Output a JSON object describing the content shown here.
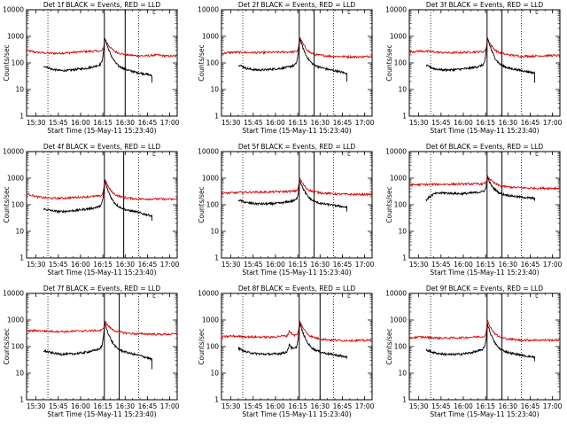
{
  "chart_data": [
    {
      "type": "line",
      "title": "Det 1f BLACK = Events, RED = LLD",
      "xlabel": "Start Time (15-May-11 15:23:40)",
      "ylabel": "Counts/sec",
      "x_ticks": [
        "15:30",
        "15:45",
        "16:00",
        "16:15",
        "16:30",
        "16:45",
        "17:00"
      ],
      "y_ticks": [
        "1",
        "10",
        "100",
        "1000",
        "10000"
      ],
      "yscale": "log",
      "ylim": [
        1,
        10000
      ],
      "xlim": [
        "15:23:40",
        "17:05:00"
      ],
      "legend_marker": "└",
      "vlines_solid": [
        "16:16",
        "16:30"
      ],
      "vlines_dotted": [
        "15:38",
        "16:39"
      ],
      "series": [
        {
          "name": "RED = LLD",
          "color": "#dd0000",
          "start": "15:23:40",
          "end": "17:05:00",
          "base": [
            290,
            250,
            235,
            230,
            240,
            255,
            270,
            280,
            260,
            230,
            200,
            185,
            185,
            200,
            180,
            180
          ],
          "peaks": [
            {
              "t": "16:16",
              "v": 900,
              "w": 2.5
            }
          ]
        },
        {
          "name": "BLACK = Events",
          "color": "#000000",
          "start": "15:35",
          "end": "16:48",
          "base": [
            78,
            58,
            52,
            52,
            58,
            62,
            72,
            88,
            105,
            70,
            55,
            45,
            40,
            33
          ],
          "peaks": [
            {
              "t": "16:16",
              "v": 1000,
              "w": 2
            }
          ],
          "tail": 18
        }
      ]
    },
    {
      "type": "line",
      "title": "Det 2f BLACK = Events, RED = LLD",
      "xlabel": "Start Time (15-May-11 15:23:40)",
      "ylabel": "Counts/sec",
      "x_ticks": [
        "15:30",
        "15:45",
        "16:00",
        "16:15",
        "16:30",
        "16:45",
        "17:00"
      ],
      "y_ticks": [
        "1",
        "10",
        "100",
        "1000",
        "10000"
      ],
      "yscale": "log",
      "ylim": [
        1,
        10000
      ],
      "xlim": [
        "15:23:40",
        "17:05:00"
      ],
      "legend_marker": "└",
      "vlines_solid": [
        "16:16",
        "16:26"
      ],
      "vlines_dotted": [
        "15:38",
        "16:39"
      ],
      "series": [
        {
          "name": "RED = LLD",
          "color": "#dd0000",
          "start": "15:23:40",
          "end": "17:05:00",
          "base": [
            230,
            250,
            250,
            245,
            245,
            250,
            255,
            260,
            250,
            200,
            190,
            180,
            175,
            170,
            170,
            180
          ],
          "peaks": [
            {
              "t": "16:16",
              "v": 1000,
              "w": 2.5
            }
          ]
        },
        {
          "name": "BLACK = Events",
          "color": "#000000",
          "start": "15:35",
          "end": "16:48",
          "base": [
            85,
            62,
            55,
            55,
            58,
            62,
            70,
            85,
            110,
            80,
            65,
            55,
            48,
            40
          ],
          "peaks": [
            {
              "t": "16:16",
              "v": 1000,
              "w": 2
            }
          ],
          "tail": 20
        }
      ]
    },
    {
      "type": "line",
      "title": "Det 3f BLACK = Events, RED = LLD",
      "xlabel": "Start Time (15-May-11 15:23:40)",
      "ylabel": "Counts/sec",
      "x_ticks": [
        "15:30",
        "15:45",
        "16:00",
        "16:15",
        "16:30",
        "16:45",
        "17:00"
      ],
      "y_ticks": [
        "1",
        "10",
        "100",
        "1000",
        "10000"
      ],
      "yscale": "log",
      "ylim": [
        1,
        10000
      ],
      "xlim": [
        "15:23:40",
        "17:05:00"
      ],
      "legend_marker": "└",
      "vlines_solid": [
        "16:16",
        "16:26"
      ],
      "vlines_dotted": [
        "15:38",
        "16:39"
      ],
      "series": [
        {
          "name": "RED = LLD",
          "color": "#dd0000",
          "start": "15:23:40",
          "end": "17:05:00",
          "base": [
            260,
            280,
            270,
            250,
            240,
            245,
            255,
            265,
            250,
            220,
            200,
            180,
            180,
            185,
            190,
            190
          ],
          "peaks": [
            {
              "t": "16:16",
              "v": 900,
              "w": 2.5
            }
          ]
        },
        {
          "name": "BLACK = Events",
          "color": "#000000",
          "start": "15:35",
          "end": "16:48",
          "base": [
            80,
            60,
            55,
            55,
            58,
            62,
            70,
            85,
            100,
            75,
            62,
            55,
            48,
            42
          ],
          "peaks": [
            {
              "t": "16:16",
              "v": 1000,
              "w": 2
            }
          ],
          "tail": 18
        }
      ]
    },
    {
      "type": "line",
      "title": "Det 4f BLACK = Events, RED = LLD",
      "xlabel": "Start Time (15-May-11 15:23:40)",
      "ylabel": "Counts/sec",
      "x_ticks": [
        "15:30",
        "15:45",
        "16:00",
        "16:15",
        "16:30",
        "16:45",
        "17:00"
      ],
      "y_ticks": [
        "1",
        "10",
        "100",
        "1000",
        "10000"
      ],
      "yscale": "log",
      "ylim": [
        1,
        10000
      ],
      "xlim": [
        "15:23:40",
        "17:05:00"
      ],
      "legend_marker": "└",
      "vlines_solid": [
        "16:16",
        "16:29"
      ],
      "vlines_dotted": [
        "15:38",
        "16:39"
      ],
      "series": [
        {
          "name": "RED = LLD",
          "color": "#dd0000",
          "start": "15:23:40",
          "end": "17:05:00",
          "base": [
            260,
            200,
            180,
            175,
            180,
            190,
            200,
            210,
            210,
            200,
            180,
            165,
            165,
            165,
            160,
            160
          ],
          "peaks": [
            {
              "t": "16:16",
              "v": 1000,
              "w": 2.5
            }
          ]
        },
        {
          "name": "BLACK = Events",
          "color": "#000000",
          "start": "15:35",
          "end": "16:48",
          "base": [
            70,
            60,
            55,
            58,
            62,
            68,
            75,
            90,
            110,
            80,
            62,
            55,
            45,
            38
          ],
          "peaks": [
            {
              "t": "16:16",
              "v": 900,
              "w": 2
            }
          ],
          "tail": 25
        }
      ]
    },
    {
      "type": "line",
      "title": "Det 5f BLACK = Events, RED = LLD",
      "xlabel": "Start Time (15-May-11 15:23:40)",
      "ylabel": "Counts/sec",
      "x_ticks": [
        "15:30",
        "15:45",
        "16:00",
        "16:15",
        "16:30",
        "16:45",
        "17:00"
      ],
      "y_ticks": [
        "1",
        "10",
        "100",
        "1000",
        "10000"
      ],
      "yscale": "log",
      "ylim": [
        1,
        10000
      ],
      "xlim": [
        "15:23:40",
        "17:05:00"
      ],
      "legend_marker": "└",
      "vlines_solid": [
        "16:16",
        "16:26"
      ],
      "vlines_dotted": [
        "15:38",
        "16:39"
      ],
      "series": [
        {
          "name": "RED = LLD",
          "color": "#dd0000",
          "start": "15:23:40",
          "end": "17:05:00",
          "base": [
            270,
            280,
            290,
            300,
            300,
            305,
            310,
            320,
            330,
            300,
            280,
            260,
            250,
            245,
            245,
            245
          ],
          "peaks": [
            {
              "t": "16:16",
              "v": 1100,
              "w": 2.5
            }
          ]
        },
        {
          "name": "BLACK = Events",
          "color": "#000000",
          "start": "15:35",
          "end": "16:48",
          "base": [
            150,
            120,
            110,
            108,
            110,
            115,
            130,
            150,
            180,
            130,
            110,
            100,
            90,
            80
          ],
          "peaks": [
            {
              "t": "16:16",
              "v": 1000,
              "w": 2
            }
          ],
          "tail": 55
        }
      ]
    },
    {
      "type": "line",
      "title": "Det 6f BLACK = Events, RED = LLD",
      "xlabel": "Start Time (15-May-11 15:23:40)",
      "ylabel": "Counts/sec",
      "x_ticks": [
        "15:30",
        "15:45",
        "16:00",
        "16:15",
        "16:30",
        "16:45",
        "17:00"
      ],
      "y_ticks": [
        "1",
        "10",
        "100",
        "1000",
        "10000"
      ],
      "yscale": "log",
      "ylim": [
        1,
        10000
      ],
      "xlim": [
        "15:23:40",
        "17:05:00"
      ],
      "legend_marker": "└",
      "vlines_solid": [
        "16:16",
        "16:26"
      ],
      "vlines_dotted": [
        "15:38",
        "16:39"
      ],
      "series": [
        {
          "name": "RED = LLD",
          "color": "#dd0000",
          "start": "15:23:40",
          "end": "17:05:00",
          "base": [
            560,
            570,
            580,
            590,
            590,
            600,
            605,
            610,
            600,
            500,
            460,
            440,
            420,
            420,
            420,
            420
          ],
          "peaks": [
            {
              "t": "16:16",
              "v": 1300,
              "w": 2.5
            }
          ]
        },
        {
          "name": "BLACK = Events",
          "color": "#000000",
          "start": "15:35",
          "end": "16:48",
          "base": [
            150,
            260,
            280,
            270,
            260,
            270,
            290,
            320,
            330,
            250,
            220,
            200,
            185,
            175
          ],
          "peaks": [
            {
              "t": "16:16",
              "v": 1200,
              "w": 2
            }
          ],
          "tail": 140
        }
      ]
    },
    {
      "type": "line",
      "title": "Det 7f BLACK = Events, RED = LLD",
      "xlabel": "Start Time (15-May-11 15:23:40)",
      "ylabel": "Counts/sec",
      "x_ticks": [
        "15:30",
        "15:45",
        "16:00",
        "16:15",
        "16:30",
        "16:45",
        "17:00"
      ],
      "y_ticks": [
        "1",
        "10",
        "100",
        "1000",
        "10000"
      ],
      "yscale": "log",
      "ylim": [
        1,
        10000
      ],
      "xlim": [
        "15:23:40",
        "17:05:00"
      ],
      "legend_marker": "└",
      "vlines_solid": [
        "16:16",
        "16:26"
      ],
      "vlines_dotted": [
        "15:38",
        "16:39"
      ],
      "series": [
        {
          "name": "RED = LLD",
          "color": "#dd0000",
          "start": "15:23:40",
          "end": "17:05:00",
          "base": [
            380,
            400,
            380,
            370,
            370,
            380,
            390,
            400,
            400,
            350,
            320,
            300,
            300,
            290,
            290,
            300
          ],
          "peaks": [
            {
              "t": "16:16",
              "v": 1000,
              "w": 2.5
            }
          ]
        },
        {
          "name": "BLACK = Events",
          "color": "#000000",
          "start": "15:35",
          "end": "16:48",
          "base": [
            70,
            58,
            52,
            52,
            55,
            60,
            70,
            85,
            100,
            72,
            60,
            50,
            42,
            33
          ],
          "peaks": [
            {
              "t": "16:16",
              "v": 900,
              "w": 2
            }
          ],
          "tail": 14
        }
      ]
    },
    {
      "type": "line",
      "title": "Det 8f BLACK = Events, RED = LLD",
      "xlabel": "Start Time (15-May-11 15:23:40)",
      "ylabel": "Counts/sec",
      "x_ticks": [
        "15:30",
        "15:45",
        "16:00",
        "16:15",
        "16:30",
        "16:45",
        "17:00"
      ],
      "y_ticks": [
        "1",
        "10",
        "100",
        "1000",
        "10000"
      ],
      "yscale": "log",
      "ylim": [
        1,
        10000
      ],
      "xlim": [
        "15:23:40",
        "17:05:00"
      ],
      "legend_marker": "└",
      "vlines_solid": [
        "16:16",
        "16:30"
      ],
      "vlines_dotted": [
        "15:38",
        "16:39"
      ],
      "series": [
        {
          "name": "RED = LLD",
          "color": "#dd0000",
          "start": "15:23:40",
          "end": "17:05:00",
          "base": [
            230,
            250,
            240,
            230,
            230,
            225,
            250,
            250,
            240,
            210,
            190,
            175,
            170,
            170,
            170,
            170
          ],
          "peaks": [
            {
              "t": "16:09",
              "v": 420,
              "w": 1.8
            },
            {
              "t": "16:16",
              "v": 1000,
              "w": 2.5
            }
          ]
        },
        {
          "name": "BLACK = Events",
          "color": "#000000",
          "start": "15:35",
          "end": "16:48",
          "base": [
            85,
            62,
            55,
            52,
            52,
            55,
            62,
            80,
            100,
            75,
            60,
            52,
            46,
            40
          ],
          "peaks": [
            {
              "t": "16:09",
              "v": 140,
              "w": 1.5
            },
            {
              "t": "16:16",
              "v": 900,
              "w": 2
            }
          ],
          "tail": 35
        }
      ]
    },
    {
      "type": "line",
      "title": "Det 9f BLACK = Events, RED = LLD",
      "xlabel": "Start Time (15-May-11 15:23:40)",
      "ylabel": "Counts/sec",
      "x_ticks": [
        "15:30",
        "15:45",
        "16:00",
        "16:15",
        "16:30",
        "16:45",
        "17:00"
      ],
      "y_ticks": [
        "1",
        "10",
        "100",
        "1000",
        "10000"
      ],
      "yscale": "log",
      "ylim": [
        1,
        10000
      ],
      "xlim": [
        "15:23:40",
        "17:05:00"
      ],
      "legend_marker": "└",
      "vlines_solid": [
        "16:16",
        "16:26"
      ],
      "vlines_dotted": [
        "15:38",
        "16:39"
      ],
      "series": [
        {
          "name": "RED = LLD",
          "color": "#dd0000",
          "start": "15:23:40",
          "end": "17:05:00",
          "base": [
            210,
            230,
            220,
            210,
            210,
            215,
            225,
            235,
            235,
            205,
            190,
            175,
            175,
            175,
            175,
            175
          ],
          "peaks": [
            {
              "t": "16:16",
              "v": 1000,
              "w": 2.5
            }
          ]
        },
        {
          "name": "BLACK = Events",
          "color": "#000000",
          "start": "15:35",
          "end": "16:48",
          "base": [
            75,
            58,
            52,
            50,
            52,
            56,
            65,
            80,
            95,
            70,
            58,
            50,
            44,
            40
          ],
          "peaks": [
            {
              "t": "16:16",
              "v": 800,
              "w": 2
            }
          ],
          "tail": 28
        }
      ]
    }
  ]
}
